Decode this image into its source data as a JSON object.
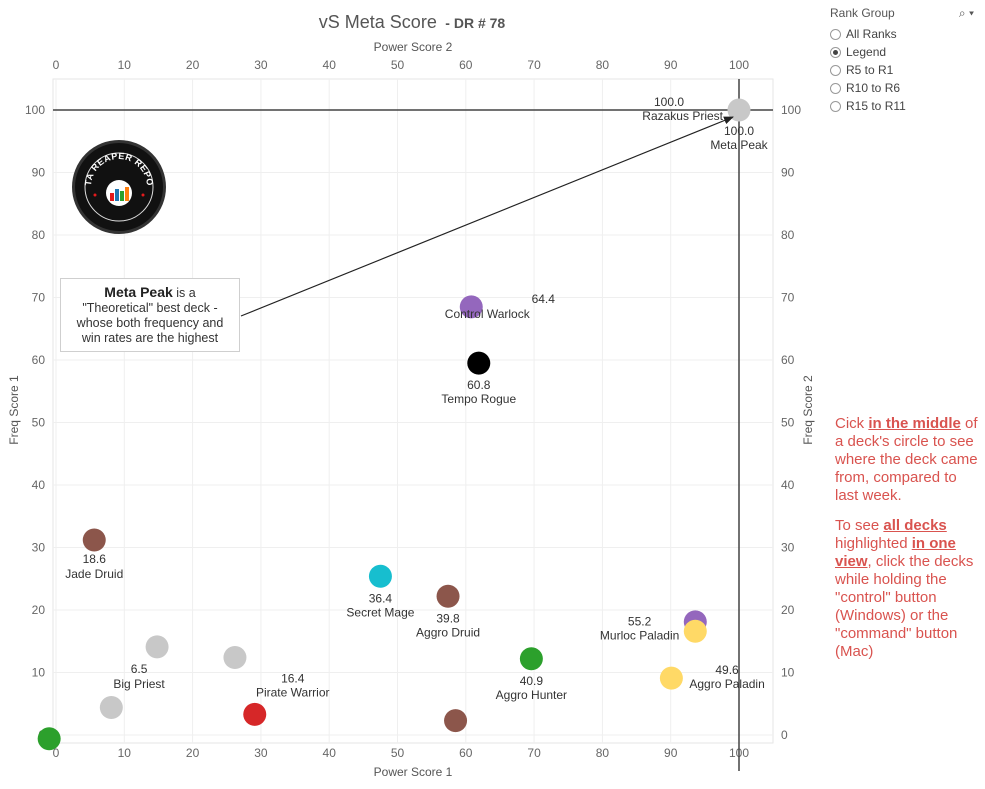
{
  "title": "vS Meta Score",
  "subtitle": "- DR # 78",
  "chart_data": {
    "type": "scatter",
    "x_axis_bottom": "Power Score 1",
    "x_axis_top": "Power Score 2",
    "y_axis_left": "Freq Score 1",
    "y_axis_right": "Freq Score 2",
    "xlim": [
      0,
      105
    ],
    "ylim": [
      -1,
      105
    ],
    "x_ticks": [
      0,
      10,
      20,
      30,
      40,
      50,
      60,
      70,
      80,
      90,
      100
    ],
    "y_ticks": [
      0,
      10,
      20,
      30,
      40,
      50,
      60,
      70,
      80,
      90,
      100
    ],
    "reference_lines": {
      "x": 100,
      "y": 100
    },
    "grid": true,
    "points": [
      {
        "x": 100,
        "y": 100,
        "color": "#c8c8c8",
        "value": "100.0",
        "name": "Razakus Priest",
        "label_pos": "left"
      },
      {
        "x": 60.8,
        "y": 68.5,
        "color": "#9467bd",
        "value": "64.4",
        "name": "Control Warlock",
        "label_pos": "right"
      },
      {
        "x": 61.9,
        "y": 59.5,
        "color": "#000000",
        "value": "60.8",
        "name": "Tempo Rogue",
        "label_pos": "below"
      },
      {
        "x": 5.6,
        "y": 31.2,
        "color": "#8c564b",
        "value": "18.6",
        "name": "Jade Druid",
        "label_pos": "below"
      },
      {
        "x": 47.5,
        "y": 25.4,
        "color": "#17becf",
        "value": "36.4",
        "name": "Secret Mage",
        "label_pos": "below"
      },
      {
        "x": 57.4,
        "y": 22.2,
        "color": "#8c564b",
        "value": "39.8",
        "name": "Aggro Druid",
        "label_pos": "below"
      },
      {
        "x": 93.6,
        "y": 18.1,
        "color": "#9467bd",
        "value": "",
        "name": "",
        "label_pos": "none"
      },
      {
        "x": 93.6,
        "y": 16.6,
        "color": "#ffd966",
        "value": "55.2",
        "name": "Murloc Paladin",
        "label_pos": "left"
      },
      {
        "x": 69.6,
        "y": 12.2,
        "color": "#2ca02c",
        "value": "40.9",
        "name": "Aggro Hunter",
        "label_pos": "below"
      },
      {
        "x": 90.1,
        "y": 9.1,
        "color": "#ffd966",
        "value": "49.6",
        "name": "Aggro Paladin",
        "label_pos": "right"
      },
      {
        "x": 14.8,
        "y": 14.1,
        "color": "#c8c8c8",
        "value": "6.5",
        "name": "Big Priest",
        "label_pos": "below-left"
      },
      {
        "x": 26.2,
        "y": 12.4,
        "color": "#c8c8c8",
        "value": "",
        "name": "",
        "label_pos": "none"
      },
      {
        "x": 29.1,
        "y": 3.3,
        "color": "#d62728",
        "value": "16.4",
        "name": "Pirate Warrior",
        "label_pos": "above-right"
      },
      {
        "x": 8.1,
        "y": 4.4,
        "color": "#c8c8c8",
        "value": "",
        "name": "",
        "label_pos": "none"
      },
      {
        "x": 58.5,
        "y": 2.3,
        "color": "#8c564b",
        "value": "",
        "name": "",
        "label_pos": "none"
      },
      {
        "x": -1.0,
        "y": -0.6,
        "color": "#2ca02c",
        "value": "",
        "name": "",
        "label_pos": "none"
      }
    ],
    "meta_peak_label": {
      "value": "100.0",
      "name": "Meta Peak"
    }
  },
  "annotation": {
    "bold": "Meta Peak",
    "rest_line1": " is a",
    "line2": "\"Theoretical\" best deck -",
    "line3": "whose both frequency and",
    "line4": "win rates are the highest"
  },
  "legend": {
    "title": "Rank Group",
    "control": "⌕ ▾",
    "items": [
      {
        "label": "All Ranks",
        "selected": false
      },
      {
        "label": "Legend",
        "selected": true
      },
      {
        "label": "R5 to R1",
        "selected": false
      },
      {
        "label": "R10 to R6",
        "selected": false
      },
      {
        "label": "R15 to R11",
        "selected": false
      }
    ]
  },
  "note": {
    "p1_a": "Cick ",
    "p1_b": "in the middle",
    "p1_c": " of a deck's circle to see where the deck came from, compared to last week.",
    "p2_a": "To see ",
    "p2_b": "all decks ",
    "p2_c": "highlighted ",
    "p2_d": "in one view",
    "p2_e": ", click the decks while holding the \"control\" button (Windows) or the \"command\" button (Mac)"
  },
  "logo": {
    "text": "DATA REAPER REPORT",
    "color": "#111111"
  }
}
